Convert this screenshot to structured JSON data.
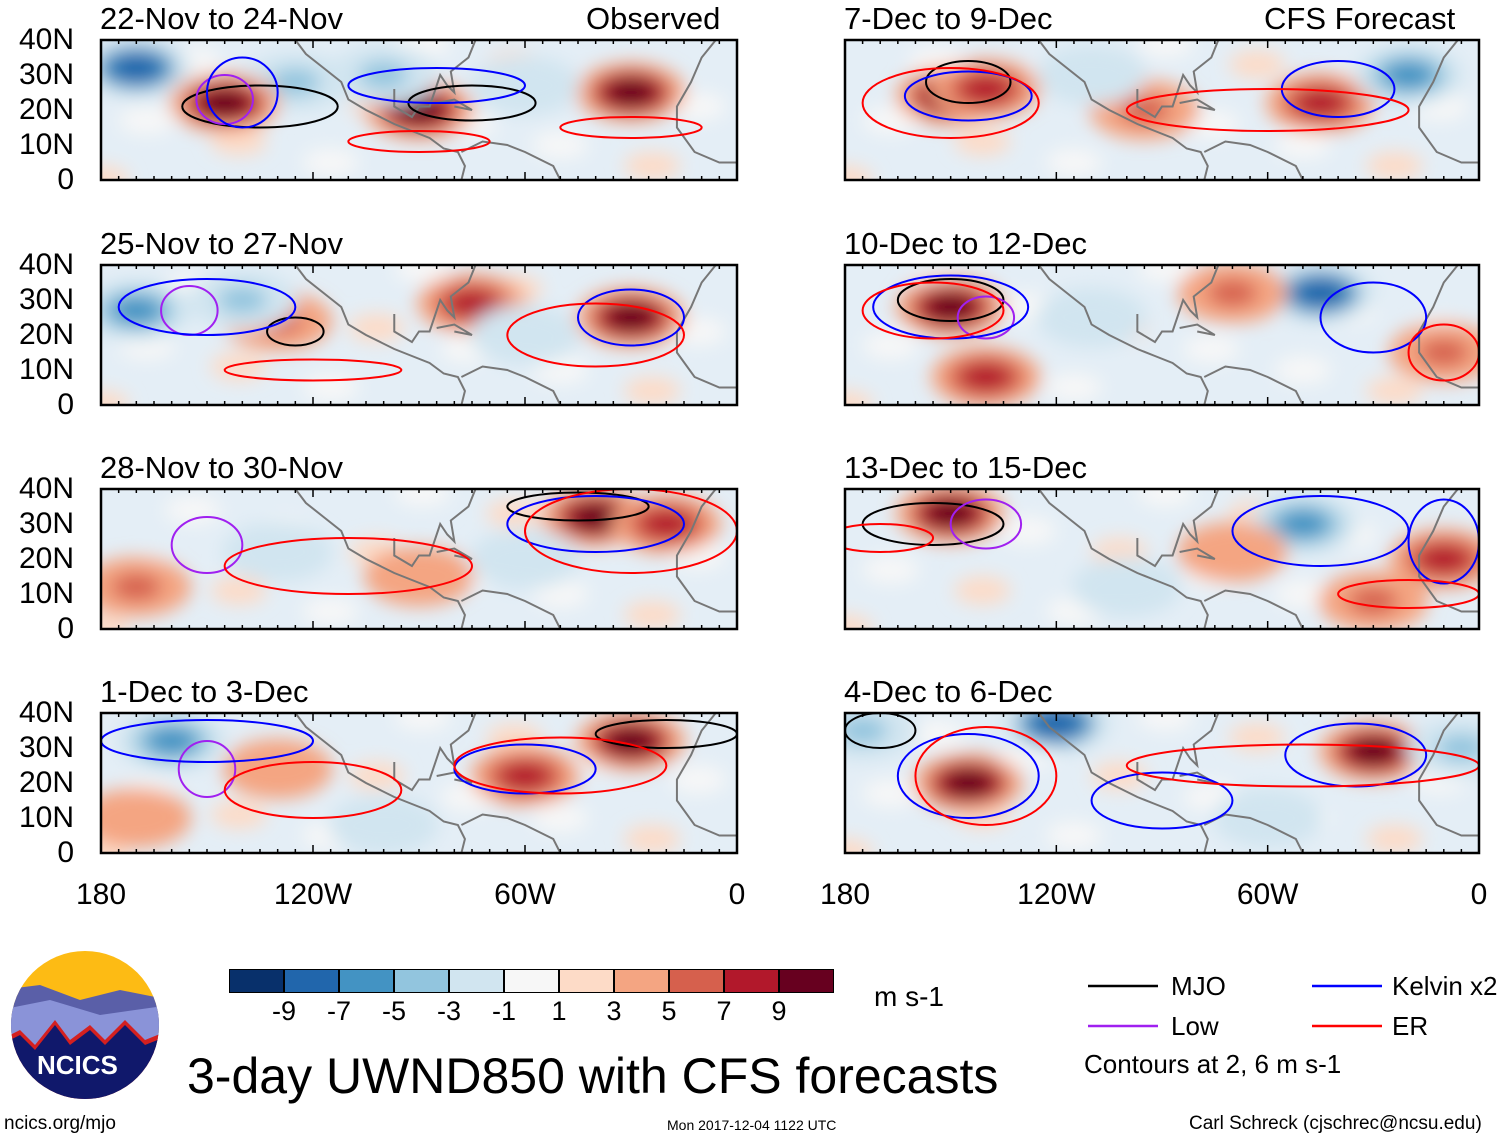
{
  "title": "3-day UWND850 with CFS forecasts",
  "footer": {
    "left": "ncics.org/mjo",
    "center": "Mon 2017-12-04 1122 UTC",
    "right": "Carl Schreck (cjschrec@ncsu.edu)"
  },
  "logo_text": "NCICS",
  "column_labels": {
    "left": "Observed",
    "right": "CFS Forecast"
  },
  "y_ticks": [
    "40N",
    "30N",
    "20N",
    "10N",
    "0"
  ],
  "x_ticks": [
    "180",
    "120W",
    "60W",
    "0"
  ],
  "colorbar": {
    "unit": "m s-1",
    "labels": [
      "-9",
      "-7",
      "-5",
      "-3",
      "-1",
      "1",
      "3",
      "5",
      "7",
      "9"
    ],
    "colors": [
      "#08306b",
      "#2166ac",
      "#4393c3",
      "#92c5de",
      "#d1e5f0",
      "#f7f7f7",
      "#fddbc7",
      "#f4a582",
      "#d6604d",
      "#b2182b",
      "#67001f"
    ]
  },
  "legend": {
    "items": [
      {
        "label": "MJO",
        "color": "#000000"
      },
      {
        "label": "Kelvin x2",
        "color": "#0000ff"
      },
      {
        "label": "Low",
        "color": "#a020f0"
      },
      {
        "label": "ER",
        "color": "#ff0000"
      }
    ],
    "note": "Contours at 2, 6 m s-1"
  },
  "chart_data": {
    "type": "map",
    "variable": "850-hPa zonal wind anomaly",
    "units": "m s-1",
    "lon_range": [
      180,
      0
    ],
    "lat_range": [
      0,
      40
    ],
    "panels": [
      {
        "title": "22-Nov to 24-Nov",
        "anom": [
          [
            170,
            32,
            -9
          ],
          [
            125,
            28,
            -5
          ],
          [
            145,
            22,
            9
          ],
          [
            90,
            20,
            9
          ],
          [
            30,
            25,
            9
          ],
          [
            60,
            27,
            -3
          ],
          [
            100,
            30,
            -5
          ]
        ],
        "contours": [
          [
            "mjo",
            135,
            21,
            22,
            6
          ],
          [
            "mjo",
            75,
            22,
            18,
            5
          ],
          [
            "low",
            145,
            23,
            8,
            7
          ],
          [
            "kelvin",
            140,
            25,
            10,
            10
          ],
          [
            "kelvin",
            85,
            27,
            25,
            5
          ],
          [
            "er",
            90,
            11,
            20,
            3
          ],
          [
            "er",
            30,
            15,
            20,
            3
          ]
        ]
      },
      {
        "title": "7-Dec to 9-Dec",
        "anom": [
          [
            150,
            24,
            9
          ],
          [
            45,
            22,
            7
          ],
          [
            140,
            26,
            7
          ],
          [
            95,
            20,
            5
          ],
          [
            20,
            30,
            -7
          ],
          [
            110,
            30,
            -3
          ]
        ],
        "contours": [
          [
            "mjo",
            145,
            28,
            12,
            6
          ],
          [
            "kelvin",
            145,
            24,
            18,
            7
          ],
          [
            "kelvin",
            40,
            26,
            16,
            8
          ],
          [
            "er",
            150,
            22,
            25,
            10
          ],
          [
            "er",
            60,
            20,
            40,
            6
          ]
        ]
      },
      {
        "title": "25-Nov to 27-Nov",
        "anom": [
          [
            170,
            27,
            -7
          ],
          [
            130,
            24,
            5
          ],
          [
            75,
            29,
            7
          ],
          [
            30,
            25,
            9
          ],
          [
            140,
            30,
            -5
          ],
          [
            60,
            20,
            -3
          ]
        ],
        "contours": [
          [
            "mjo",
            125,
            21,
            8,
            4
          ],
          [
            "low",
            155,
            27,
            8,
            7
          ],
          [
            "kelvin",
            150,
            28,
            25,
            8
          ],
          [
            "kelvin",
            30,
            25,
            15,
            8
          ],
          [
            "er",
            40,
            20,
            25,
            9
          ],
          [
            "er",
            120,
            10,
            25,
            3
          ]
        ]
      },
      {
        "title": "10-Dec to 12-Dec",
        "anom": [
          [
            150,
            28,
            9
          ],
          [
            45,
            32,
            -9
          ],
          [
            70,
            32,
            5
          ],
          [
            140,
            8,
            7
          ],
          [
            10,
            15,
            5
          ],
          [
            110,
            25,
            -3
          ]
        ],
        "contours": [
          [
            "mjo",
            150,
            30,
            15,
            6
          ],
          [
            "low",
            140,
            25,
            8,
            6
          ],
          [
            "kelvin",
            150,
            28,
            22,
            9
          ],
          [
            "kelvin",
            30,
            25,
            15,
            10
          ],
          [
            "er",
            155,
            27,
            20,
            8
          ],
          [
            "er",
            10,
            15,
            10,
            8
          ]
        ]
      },
      {
        "title": "28-Nov to 30-Nov",
        "anom": [
          [
            40,
            32,
            9
          ],
          [
            20,
            30,
            7
          ],
          [
            130,
            22,
            -3
          ],
          [
            170,
            12,
            5
          ],
          [
            90,
            15,
            3
          ],
          [
            60,
            20,
            -3
          ]
        ],
        "contours": [
          [
            "mjo",
            45,
            35,
            20,
            4
          ],
          [
            "low",
            150,
            24,
            10,
            8
          ],
          [
            "kelvin",
            40,
            30,
            25,
            8
          ],
          [
            "er",
            30,
            28,
            30,
            12
          ],
          [
            "er",
            110,
            18,
            35,
            8
          ]
        ]
      },
      {
        "title": "13-Dec to 15-Dec",
        "anom": [
          [
            150,
            33,
            9
          ],
          [
            50,
            30,
            -7
          ],
          [
            70,
            22,
            3
          ],
          [
            10,
            20,
            7
          ],
          [
            30,
            8,
            5
          ],
          [
            100,
            12,
            -3
          ]
        ],
        "contours": [
          [
            "mjo",
            155,
            30,
            20,
            6
          ],
          [
            "low",
            140,
            30,
            10,
            7
          ],
          [
            "kelvin",
            45,
            28,
            25,
            10
          ],
          [
            "kelvin",
            10,
            25,
            10,
            12
          ],
          [
            "er",
            170,
            26,
            15,
            4
          ],
          [
            "er",
            20,
            10,
            20,
            4
          ]
        ]
      },
      {
        "title": "1-Dec to 3-Dec",
        "anom": [
          [
            160,
            32,
            -7
          ],
          [
            30,
            32,
            9
          ],
          [
            60,
            22,
            7
          ],
          [
            130,
            24,
            3
          ],
          [
            100,
            8,
            -3
          ],
          [
            170,
            10,
            3
          ]
        ],
        "contours": [
          [
            "mjo",
            20,
            34,
            20,
            4
          ],
          [
            "low",
            150,
            24,
            8,
            8
          ],
          [
            "kelvin",
            60,
            24,
            20,
            7
          ],
          [
            "kelvin",
            150,
            32,
            30,
            6
          ],
          [
            "er",
            50,
            25,
            30,
            8
          ],
          [
            "er",
            120,
            18,
            25,
            8
          ]
        ]
      },
      {
        "title": "4-Dec to 6-Dec",
        "anom": [
          [
            145,
            20,
            9
          ],
          [
            30,
            29,
            9
          ],
          [
            120,
            37,
            -9
          ],
          [
            175,
            35,
            -5
          ],
          [
            60,
            10,
            -3
          ],
          [
            5,
            30,
            -5
          ]
        ],
        "contours": [
          [
            "mjo",
            170,
            35,
            10,
            5
          ],
          [
            "kelvin",
            145,
            22,
            20,
            12
          ],
          [
            "kelvin",
            35,
            28,
            20,
            9
          ],
          [
            "kelvin",
            90,
            15,
            20,
            8
          ],
          [
            "er",
            140,
            22,
            20,
            14
          ],
          [
            "er",
            50,
            25,
            50,
            6
          ]
        ]
      }
    ]
  }
}
